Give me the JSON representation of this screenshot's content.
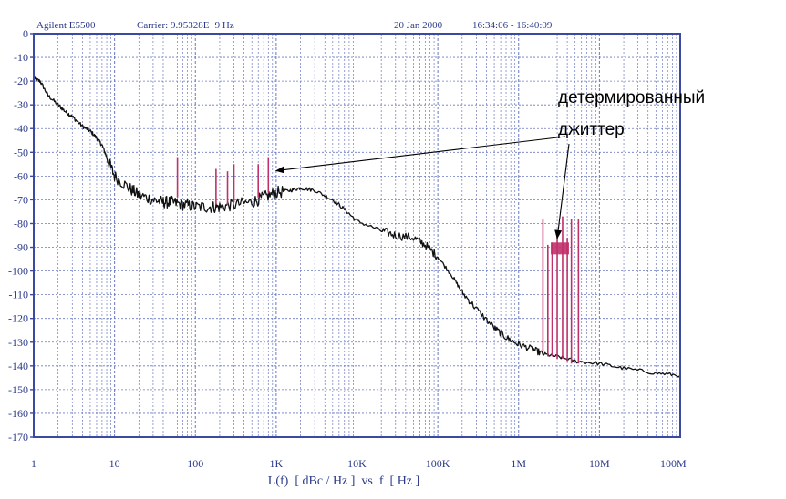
{
  "header": {
    "instrument": "Agilent E5500",
    "carrier": "Carrier: 9.95328E+9 Hz",
    "date": "20 Jan 2000",
    "time": "16:34:06 - 16:40:09"
  },
  "colors": {
    "frame": "#3b4aa0",
    "grid": "#6a78c0",
    "noise": "#111111",
    "spur": "#c0306a",
    "axis_text": "#2a3a8a"
  },
  "chart_data": {
    "type": "line",
    "xscale": "log",
    "xlim": [
      1,
      100000000
    ],
    "ylim": [
      -170,
      0
    ],
    "xlabel": "L(f)  [ dBc / Hz ]  vs  f  [ Hz ]",
    "x_tick_labels": [
      {
        "x": 1,
        "label": "1"
      },
      {
        "x": 10,
        "label": "10"
      },
      {
        "x": 100,
        "label": "100"
      },
      {
        "x": 1000,
        "label": "1K"
      },
      {
        "x": 10000,
        "label": "10K"
      },
      {
        "x": 100000,
        "label": "100K"
      },
      {
        "x": 1000000,
        "label": "1M"
      },
      {
        "x": 10000000,
        "label": "10M"
      },
      {
        "x": 100000000,
        "label": "100M"
      }
    ],
    "y_ticks": [
      0,
      -10,
      -20,
      -30,
      -40,
      -50,
      -60,
      -70,
      -80,
      -90,
      -100,
      -110,
      -120,
      -130,
      -140,
      -150,
      -160,
      -170
    ],
    "grid": true,
    "series": [
      {
        "name": "",
        "color": "#111111",
        "x": [
          1,
          1.2,
          1.5,
          2,
          2.5,
          3,
          4,
          5,
          6,
          7,
          8,
          10,
          15,
          20,
          30,
          40,
          50,
          70,
          100,
          150,
          200,
          300,
          500,
          700,
          1000,
          1500,
          2000,
          3000,
          5000,
          7000,
          10000,
          20000,
          30000,
          50000,
          70000,
          100000,
          150000,
          200000,
          300000,
          500000,
          700000,
          1000000,
          1500000,
          2000000,
          3000000,
          5000000,
          10000000,
          20000000,
          50000000,
          100000000
        ],
        "y": [
          -19,
          -20,
          -26,
          -30,
          -33,
          -35,
          -39,
          -41,
          -44,
          -47,
          -52,
          -60,
          -65,
          -68,
          -70,
          -71,
          -71,
          -72,
          -73,
          -73,
          -73,
          -72,
          -71,
          -69,
          -67,
          -66,
          -65,
          -66,
          -70,
          -74,
          -79,
          -83,
          -85,
          -86,
          -89,
          -94,
          -102,
          -109,
          -116,
          -124,
          -128,
          -131,
          -133,
          -135,
          -136,
          -138,
          -139,
          -141,
          -143,
          -144
        ]
      }
    ],
    "spurs": [
      {
        "x": 60,
        "top": -52,
        "bottom": -69
      },
      {
        "x": 180,
        "top": -57,
        "bottom": -72
      },
      {
        "x": 250,
        "top": -58,
        "bottom": -72
      },
      {
        "x": 300,
        "top": -55,
        "bottom": -71
      },
      {
        "x": 600,
        "top": -55,
        "bottom": -69
      },
      {
        "x": 800,
        "top": -52,
        "bottom": -67
      },
      {
        "x": 2000000,
        "top": -78,
        "bottom": -134
      },
      {
        "x": 2300000,
        "top": -89,
        "bottom": -136
      },
      {
        "x": 2600000,
        "top": -88,
        "bottom": -136
      },
      {
        "x": 3000000,
        "top": -85,
        "bottom": -137
      },
      {
        "x": 3500000,
        "top": -77,
        "bottom": -137
      },
      {
        "x": 4000000,
        "top": -86,
        "bottom": -138
      },
      {
        "x": 4500000,
        "top": -78,
        "bottom": -139
      },
      {
        "x": 5500000,
        "top": -78,
        "bottom": -139
      }
    ],
    "spur_clusters": [
      {
        "x_from": 2500000,
        "x_to": 4200000,
        "top": -88,
        "bottom": -93
      }
    ],
    "annotation": {
      "line1": "детермированный",
      "line2": "джиттер",
      "targets": [
        {
          "x": 900,
          "y": -57
        },
        {
          "x": 3000000,
          "y": -87
        }
      ]
    }
  }
}
